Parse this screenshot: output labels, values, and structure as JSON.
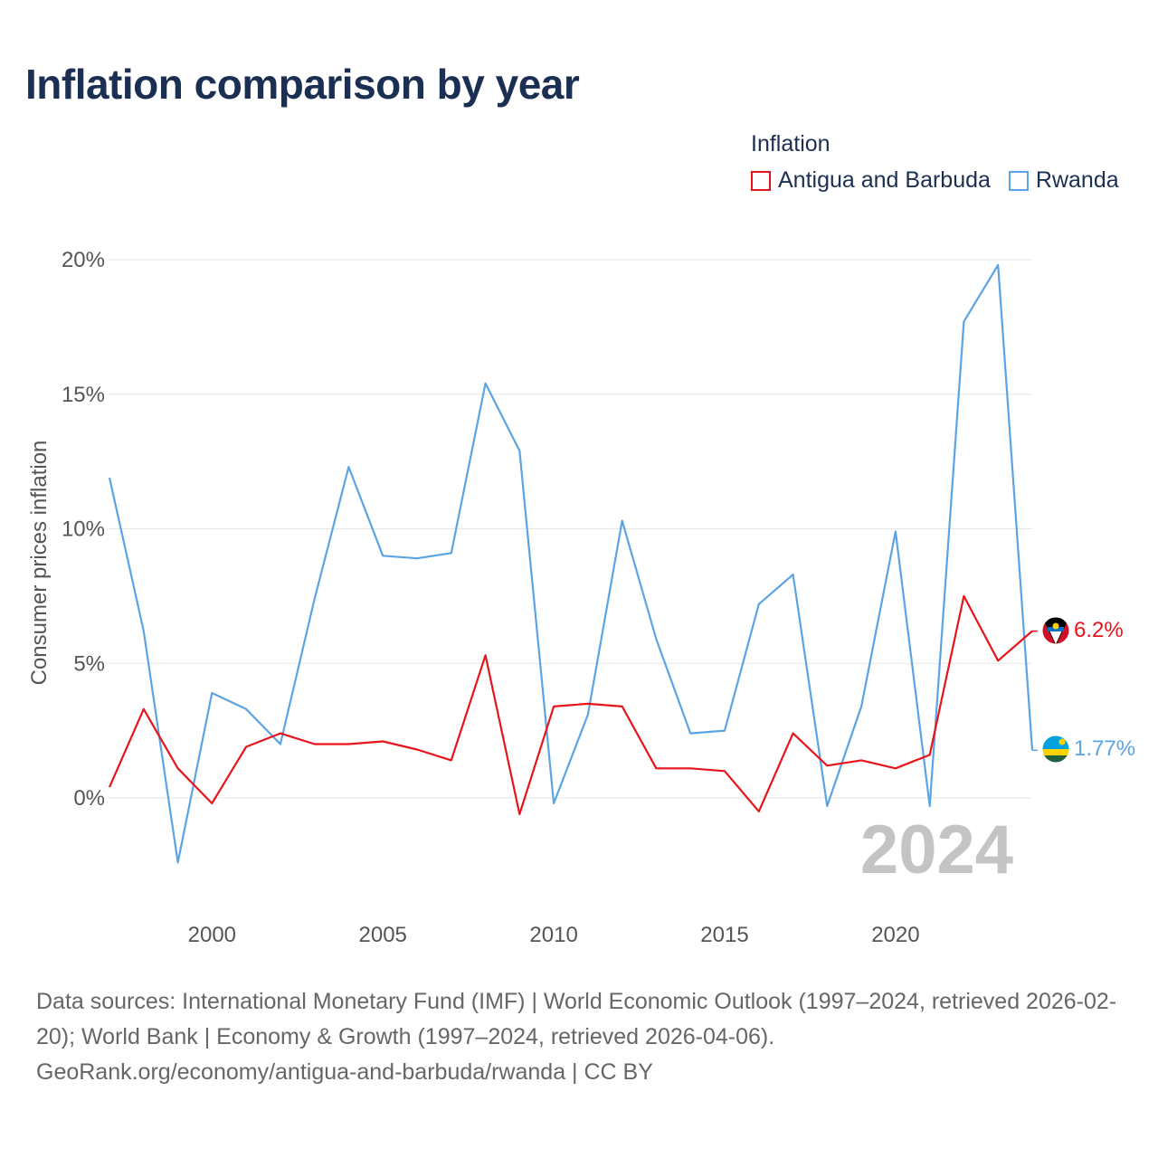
{
  "header": {
    "title": "Inflation comparison by year"
  },
  "legend": {
    "title": "Inflation",
    "items": [
      {
        "label": "Antigua and Barbuda",
        "color": "#e8141b"
      },
      {
        "label": "Rwanda",
        "color": "#5ba4e4"
      }
    ]
  },
  "chart_data": {
    "type": "line",
    "title": "Inflation comparison by year",
    "ylabel": "Consumer prices inflation",
    "xlabel": "",
    "x": [
      1997,
      1998,
      1999,
      2000,
      2001,
      2002,
      2003,
      2004,
      2005,
      2006,
      2007,
      2008,
      2009,
      2010,
      2011,
      2012,
      2013,
      2014,
      2015,
      2016,
      2017,
      2018,
      2019,
      2020,
      2021,
      2022,
      2023,
      2024
    ],
    "xlim": [
      1997,
      2024
    ],
    "ylim": [
      -4,
      20
    ],
    "x_ticks": [
      2000,
      2005,
      2010,
      2015,
      2020
    ],
    "x_tick_labels": [
      "2000",
      "2005",
      "2010",
      "2015",
      "2020"
    ],
    "y_ticks": [
      0,
      5,
      10,
      15,
      20
    ],
    "y_tick_labels": [
      "0%",
      "5%",
      "10%",
      "15%",
      "20%"
    ],
    "grid": true,
    "legend_position": "top-right",
    "series": [
      {
        "name": "Antigua and Barbuda",
        "color": "#e8141b",
        "values": [
          0.4,
          3.3,
          1.1,
          -0.2,
          1.9,
          2.4,
          2.0,
          2.0,
          2.1,
          1.8,
          1.4,
          5.3,
          -0.6,
          3.4,
          3.5,
          3.4,
          1.1,
          1.1,
          1.0,
          -0.5,
          2.4,
          1.2,
          1.4,
          1.1,
          1.6,
          7.5,
          5.1,
          6.2
        ],
        "end_label": "6.2%"
      },
      {
        "name": "Rwanda",
        "color": "#5ba4e4",
        "values": [
          11.9,
          6.2,
          -2.4,
          3.9,
          3.3,
          2.0,
          7.4,
          12.3,
          9.0,
          8.9,
          9.1,
          15.4,
          12.9,
          -0.2,
          3.1,
          10.3,
          5.9,
          2.4,
          2.5,
          7.2,
          8.3,
          -0.3,
          3.4,
          9.9,
          -0.3,
          17.7,
          19.8,
          1.77
        ],
        "end_label": "1.77%"
      }
    ],
    "annotation_year": "2024"
  },
  "source": {
    "line1": "Data sources: International Monetary Fund (IMF) | World Economic Outlook (1997–2024, retrieved 2026-02-20); World Bank | Economy & Growth (1997–2024, retrieved 2026-04-06).",
    "line2": "GeoRank.org/economy/antigua-and-barbuda/rwanda | CC BY"
  }
}
